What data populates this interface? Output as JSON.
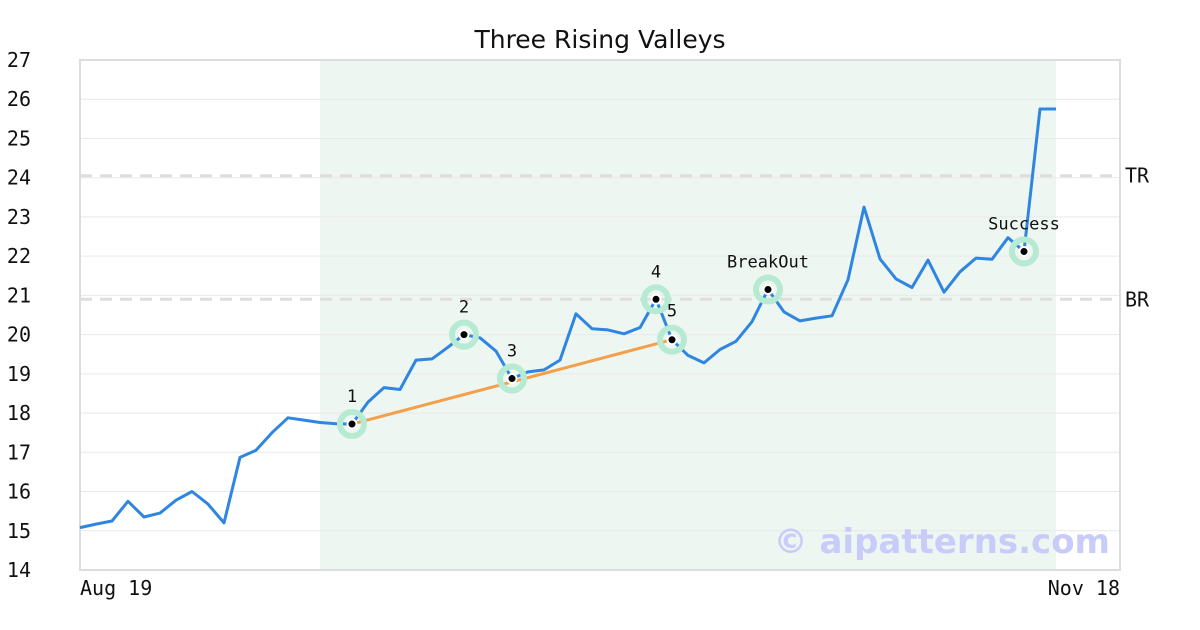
{
  "chart_data": {
    "type": "line",
    "title": "Three Rising Valleys",
    "ylim": [
      14,
      27
    ],
    "yticks": [
      14,
      15,
      16,
      17,
      18,
      19,
      20,
      21,
      22,
      23,
      24,
      25,
      26,
      27
    ],
    "x_start_label": "Aug 19",
    "x_end_label": "Nov 18",
    "grid": true,
    "colors": {
      "price": "#2f86e0",
      "trendline": "#f4a04a",
      "marker_halo": "#b7ead3",
      "highlight": "#eef6f2",
      "level_line": "#dddddd",
      "grid": "#e9e9e9",
      "frame": "#dcdcdc"
    },
    "series": [
      {
        "values": [
          15.08,
          15.17,
          15.25,
          15.75,
          15.35,
          15.45,
          15.78,
          16.0,
          15.68,
          15.2,
          16.87,
          17.05,
          17.5,
          17.88,
          17.82,
          17.76,
          17.73,
          17.72,
          18.28,
          18.65,
          18.6,
          19.35,
          19.38,
          19.68,
          20.0,
          19.92,
          19.58,
          18.88,
          19.05,
          19.1,
          19.35,
          20.53,
          20.15,
          20.12,
          20.02,
          20.18,
          20.9,
          19.87,
          19.47,
          19.28,
          19.62,
          19.83,
          20.33,
          21.15,
          20.58,
          20.35,
          20.42,
          20.48,
          21.4,
          23.25,
          21.93,
          21.42,
          21.2,
          21.9,
          21.08,
          21.6,
          21.95,
          21.92,
          22.47,
          22.12,
          25.75,
          25.75
        ]
      }
    ],
    "trendline": [
      {
        "index": 17,
        "value": 17.72
      },
      {
        "index": 37,
        "value": 19.87
      }
    ],
    "highlight_range": [
      15,
      61
    ],
    "levels": [
      {
        "label": "TR",
        "value": 24.05
      },
      {
        "label": "BR",
        "value": 20.9
      }
    ],
    "annotations": [
      {
        "label": "1",
        "index": 17,
        "value": 17.72,
        "halo": true
      },
      {
        "label": "2",
        "index": 24,
        "value": 20.0,
        "halo": true
      },
      {
        "label": "3",
        "index": 27,
        "value": 18.88,
        "halo": true
      },
      {
        "label": "4",
        "index": 36,
        "value": 20.9,
        "halo": true
      },
      {
        "label": "5",
        "index": 37,
        "value": 19.87,
        "halo": true
      },
      {
        "label": "BreakOut",
        "index": 43,
        "value": 21.15,
        "halo": true
      },
      {
        "label": "Success",
        "index": 59,
        "value": 22.12,
        "halo": true
      }
    ],
    "watermark": "© aipatterns.com"
  }
}
